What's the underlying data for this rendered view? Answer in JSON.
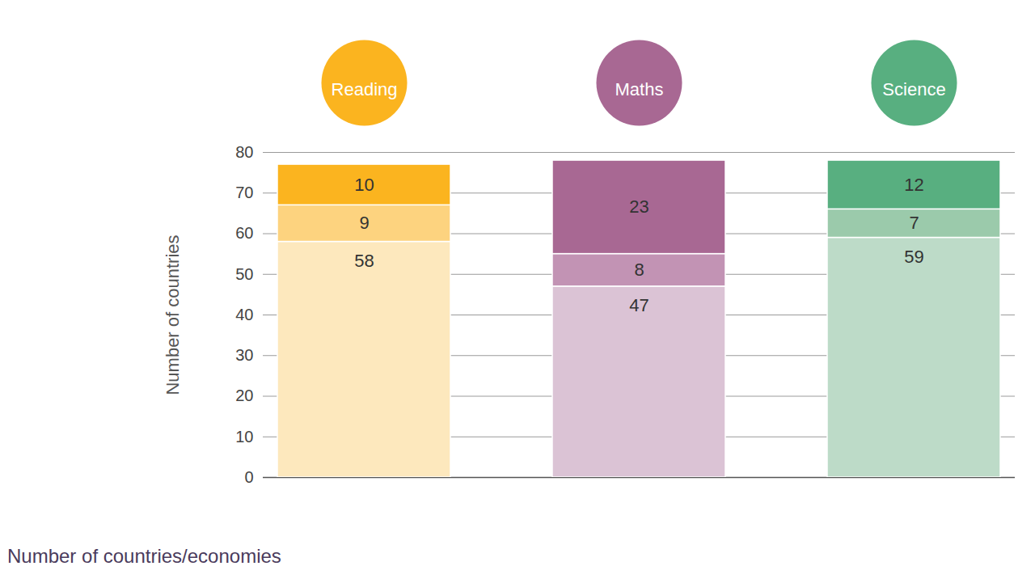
{
  "chart_data": {
    "type": "bar",
    "stacked": true,
    "data_labels": true,
    "grid": true,
    "ylabel": "Number of countries",
    "caption": "Number of countries/economies",
    "categories": [
      "Reading",
      "Maths",
      "Science"
    ],
    "series": [
      {
        "values": [
          58,
          47,
          59
        ],
        "colors": [
          "#fde8bd",
          "#dbc3d5",
          "#bddbc8"
        ]
      },
      {
        "values": [
          9,
          8,
          7
        ],
        "colors": [
          "#fdd37f",
          "#c293b4",
          "#9bcaab"
        ]
      },
      {
        "values": [
          10,
          23,
          12
        ],
        "colors": [
          "#fbb41f",
          "#a86893",
          "#58af80"
        ]
      }
    ],
    "ylim": [
      0,
      80
    ],
    "yticks": [
      0,
      10,
      20,
      30,
      40,
      50,
      60,
      70,
      80
    ]
  }
}
